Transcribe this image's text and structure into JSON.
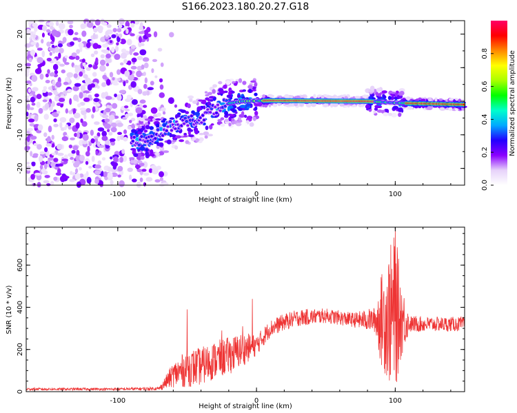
{
  "title": "S166.2023.180.20.27.G18",
  "chart_data": [
    {
      "type": "heatmap",
      "title": "S166.2023.180.20.27.G18",
      "xlabel": "Height of straight line (km)",
      "ylabel": "Frequency (Hz)",
      "xlim": [
        -166,
        150
      ],
      "ylim": [
        -25,
        24
      ],
      "xticks": [
        -100,
        0,
        100
      ],
      "yticks": [
        -20,
        -10,
        0,
        10,
        20
      ],
      "colorbar": {
        "label": "Normalized spectral amplitude",
        "range": [
          0,
          1
        ],
        "ticks": [
          0.0,
          0.2,
          0.4,
          0.6,
          0.8
        ],
        "colormap": [
          "#ffffff",
          "#e6d2fa",
          "#8a00ff",
          "#2200ff",
          "#00aaff",
          "#00ffcc",
          "#00ff00",
          "#aaff00",
          "#ffff00",
          "#ff8800",
          "#ff0000",
          "#ff0066"
        ]
      },
      "ridge": [
        {
          "x": -80,
          "y": -12
        },
        {
          "x": -60,
          "y": -7
        },
        {
          "x": -40,
          "y": -5
        },
        {
          "x": -25,
          "y": -1
        },
        {
          "x": -10,
          "y": 0
        },
        {
          "x": 10,
          "y": 0.2
        },
        {
          "x": 80,
          "y": 0
        },
        {
          "x": 100,
          "y": -0.5
        },
        {
          "x": 150,
          "y": -1
        }
      ]
    },
    {
      "type": "line",
      "xlabel": "Height of straight line (km)",
      "ylabel": "SNR (10 * v/v)",
      "xlim": [
        -166,
        150
      ],
      "ylim": [
        0,
        780
      ],
      "xticks": [
        -100,
        0,
        100
      ],
      "yticks": [
        0,
        200,
        400,
        600
      ],
      "line_color": "#ee3333",
      "envelope": [
        {
          "x": -166,
          "mean": 12,
          "spread": 6
        },
        {
          "x": -100,
          "mean": 12,
          "spread": 6
        },
        {
          "x": -70,
          "mean": 15,
          "spread": 8
        },
        {
          "x": -60,
          "mean": 80,
          "spread": 60
        },
        {
          "x": -50,
          "mean": 110,
          "spread": 90
        },
        {
          "x": -40,
          "mean": 120,
          "spread": 90
        },
        {
          "x": -30,
          "mean": 150,
          "spread": 90
        },
        {
          "x": -20,
          "mean": 170,
          "spread": 90
        },
        {
          "x": -10,
          "mean": 200,
          "spread": 80
        },
        {
          "x": 0,
          "mean": 220,
          "spread": 50
        },
        {
          "x": 10,
          "mean": 300,
          "spread": 40
        },
        {
          "x": 20,
          "mean": 330,
          "spread": 40
        },
        {
          "x": 30,
          "mean": 350,
          "spread": 40
        },
        {
          "x": 50,
          "mean": 360,
          "spread": 35
        },
        {
          "x": 70,
          "mean": 340,
          "spread": 35
        },
        {
          "x": 85,
          "mean": 340,
          "spread": 60
        },
        {
          "x": 90,
          "mean": 340,
          "spread": 220
        },
        {
          "x": 96,
          "mean": 360,
          "spread": 330
        },
        {
          "x": 100,
          "mean": 380,
          "spread": 380
        },
        {
          "x": 104,
          "mean": 350,
          "spread": 200
        },
        {
          "x": 110,
          "mean": 320,
          "spread": 40
        },
        {
          "x": 130,
          "mean": 320,
          "spread": 35
        },
        {
          "x": 150,
          "mean": 320,
          "spread": 35
        }
      ],
      "spikes": [
        {
          "x": -50,
          "y": 390
        },
        {
          "x": -25,
          "y": 290
        },
        {
          "x": -10,
          "y": 310
        },
        {
          "x": -3,
          "y": 440
        },
        {
          "x": 100,
          "y": 780
        }
      ]
    }
  ]
}
